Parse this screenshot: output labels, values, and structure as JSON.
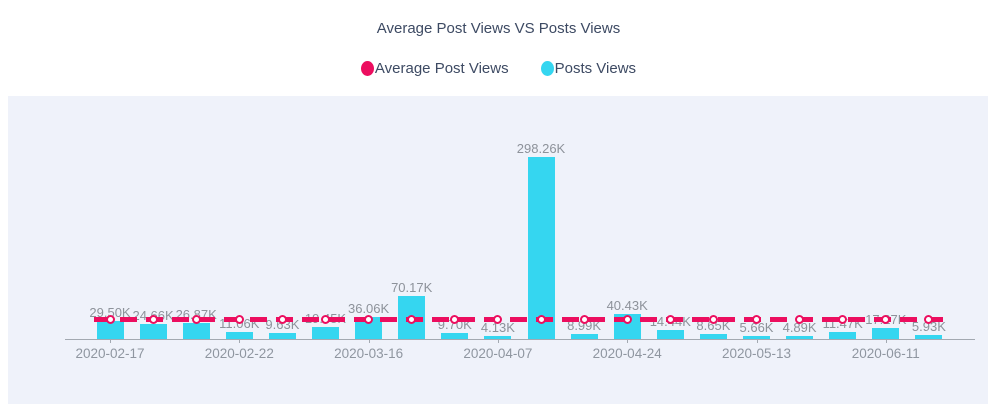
{
  "title": "Average Post Views VS Posts Views",
  "legend": [
    {
      "label": "Average Post Views",
      "color": "#ec0e5f"
    },
    {
      "label": "Posts Views",
      "color": "#35d6f0"
    }
  ],
  "colors": {
    "bar": "#35d6f0",
    "average_line": "#ec0e5f",
    "plot_background": "#eff2fa",
    "value_label_text": "#8d929a",
    "axis_label_text": "#8f96a0",
    "title_text": "#3d4a63"
  },
  "chart_data": {
    "type": "bar",
    "title": "Average Post Views VS Posts Views",
    "legend_position": "top",
    "grid": false,
    "ylim_k": [
      0,
      300
    ],
    "x_tick_labels": [
      {
        "index": 0,
        "label": "2020-02-17"
      },
      {
        "index": 3,
        "label": "2020-02-22"
      },
      {
        "index": 6,
        "label": "2020-03-16"
      },
      {
        "index": 9,
        "label": "2020-04-07"
      },
      {
        "index": 12,
        "label": "2020-04-24"
      },
      {
        "index": 15,
        "label": "2020-05-13"
      },
      {
        "index": 18,
        "label": "2020-06-11"
      }
    ],
    "series": [
      {
        "name": "Posts Views",
        "type": "bar",
        "color": "#35d6f0",
        "values_k": [
          29.5,
          24.66,
          26.87,
          11.06,
          9.63,
          19.45,
          36.06,
          70.17,
          9.7,
          4.13,
          298.26,
          8.99,
          40.43,
          14.44,
          8.65,
          5.66,
          4.89,
          11.47,
          17.27,
          5.93
        ],
        "labels": [
          "29.50K",
          "24.66K",
          "26.87K",
          "11.06K",
          "9.63K",
          "19.45K",
          "36.06K",
          "70.17K",
          "9.70K",
          "4.13K",
          "298.26K",
          "8.99K",
          "40.43K",
          "14.44K",
          "8.65K",
          "5.66K",
          "4.89K",
          "11.47K",
          "17.27K",
          "5.93K"
        ]
      },
      {
        "name": "Average Post Views",
        "type": "line",
        "style": "dashed",
        "color": "#ec0e5f",
        "marker": "circle-white-fill-at-each-category",
        "approx_value_k": 33
      }
    ]
  }
}
